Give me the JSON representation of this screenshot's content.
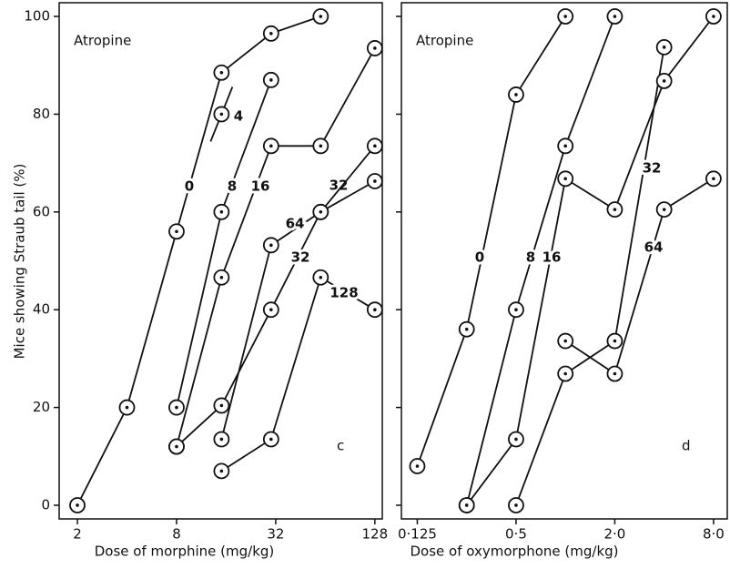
{
  "chart_data": [
    {
      "type": "line",
      "annotation": "Atropine",
      "panel_label": "c",
      "x_label": "Dose of morphine (mg/kg)",
      "y_label": "Mice showing Straub tail (%)",
      "xscale": "log",
      "xlim": [
        1.55,
        142
      ],
      "ylim": [
        -2.8,
        102.8
      ],
      "xticks": [
        2,
        8,
        32,
        128
      ],
      "yticks": [
        0,
        20,
        40,
        60,
        80,
        100
      ],
      "series": [
        {
          "name": "0",
          "color": "#111111",
          "x": [
            2,
            4,
            8,
            15,
            30,
            60
          ],
          "values": [
            0,
            20,
            56,
            88.5,
            96.5,
            100
          ]
        },
        {
          "name": "4",
          "color": "#111111",
          "x": [
            15
          ],
          "values": [
            80
          ]
        },
        {
          "name": "8",
          "color": "#111111",
          "x": [
            8,
            15,
            30
          ],
          "values": [
            20,
            60,
            87
          ]
        },
        {
          "name": "16",
          "color": "#111111",
          "x": [
            8,
            15,
            30,
            60,
            128
          ],
          "values": [
            12,
            46.6,
            73.5,
            73.5,
            93.5
          ]
        },
        {
          "name": "32",
          "color": "#111111",
          "x": [
            8,
            15,
            30,
            60,
            128
          ],
          "values": [
            12,
            20.4,
            40,
            60,
            66.3
          ]
        },
        {
          "name": "64",
          "color": "#111111",
          "x": [
            15,
            30,
            60,
            128
          ],
          "values": [
            13.5,
            53.2,
            60,
            73.5
          ]
        },
        {
          "name": "128",
          "color": "#111111",
          "x": [
            15,
            30,
            60,
            128
          ],
          "values": [
            7,
            13.5,
            46.6,
            40
          ]
        }
      ]
    },
    {
      "type": "line",
      "annotation": "Atropine",
      "panel_label": "d",
      "x_label": "Dose of oxymorphone (mg/kg)",
      "xscale": "log",
      "xlim": [
        0.1,
        9.7
      ],
      "ylim": [
        -2.8,
        102.8
      ],
      "xticks": [
        {
          "value": 0.125,
          "label": "0·125"
        },
        {
          "value": 0.5,
          "label": "0·5"
        },
        {
          "value": 2,
          "label": "2·0"
        },
        {
          "value": 8,
          "label": "8·0"
        }
      ],
      "yticks": [
        0,
        20,
        40,
        60,
        80,
        100
      ],
      "series": [
        {
          "name": "0",
          "color": "#111111",
          "x": [
            0.125,
            0.25,
            0.5,
            1
          ],
          "values": [
            8,
            36,
            84,
            100
          ]
        },
        {
          "name": "8",
          "color": "#111111",
          "x": [
            0.25,
            0.5,
            1,
            2
          ],
          "values": [
            0,
            40,
            73.5,
            100
          ]
        },
        {
          "name": "16",
          "color": "#111111",
          "x": [
            0.25,
            0.5,
            1,
            2,
            4,
            8
          ],
          "values": [
            0,
            13.5,
            66.8,
            60.5,
            86.8,
            100
          ]
        },
        {
          "name": "32",
          "color": "#111111",
          "x": [
            0.5,
            1,
            2,
            4
          ],
          "values": [
            0,
            26.9,
            33.6,
            93.7
          ]
        },
        {
          "name": "64",
          "color": "#111111",
          "x": [
            1,
            2,
            4,
            8
          ],
          "values": [
            33.6,
            26.9,
            60.5,
            66.8
          ]
        }
      ]
    }
  ]
}
